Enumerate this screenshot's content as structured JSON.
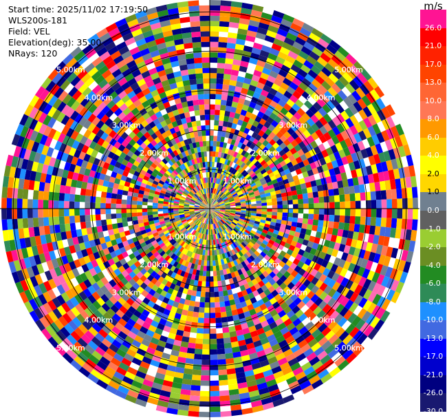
{
  "header": {
    "start_time": "Start time: 2025/11/02 17:19:50",
    "instrument": "WLS200s-181",
    "field": "Field: VEL",
    "elevation": "Elevation(deg): 35.00",
    "nrays": "NRays: 120"
  },
  "colorbar": {
    "unit": "m/s",
    "ticks": [
      "26.0",
      "21.0",
      "17.0",
      "13.0",
      "10.0",
      "8.0",
      "6.0",
      "4.0",
      "2.0",
      "1.0",
      "0.0",
      "-1.0",
      "-2.0",
      "-4.0",
      "-6.0",
      "-8.0",
      "-10.0",
      "-13.0",
      "-17.0",
      "-21.0",
      "-26.0",
      "-30.0"
    ],
    "colors": [
      "#ff1493",
      "#ff0000",
      "#ff2200",
      "#ff4400",
      "#ff6633",
      "#ff7755",
      "#ff9900",
      "#ffcc00",
      "#ffff00",
      "#ffd700",
      "#708090",
      "#606060",
      "#9acd32",
      "#6b8e23",
      "#228b22",
      "#2e8b57",
      "#1e90ff",
      "#4169e1",
      "#0000ff",
      "#0000cd",
      "#000080",
      "#191970"
    ]
  },
  "ppi": {
    "n_rays": 120,
    "range_labels": [
      "1.00km",
      "2.00km",
      "3.00km",
      "4.00km",
      "5.00km"
    ],
    "palette": [
      "#ff1493",
      "#ff0000",
      "#ff4400",
      "#ff7755",
      "#ff9900",
      "#ffcc00",
      "#ffff00",
      "#708090",
      "#9acd32",
      "#6b8e23",
      "#228b22",
      "#2e8b57",
      "#1e90ff",
      "#4169e1",
      "#0000ff",
      "#000080",
      "#191970",
      "#ff69b4",
      "#00008b",
      "#ffffff"
    ]
  }
}
